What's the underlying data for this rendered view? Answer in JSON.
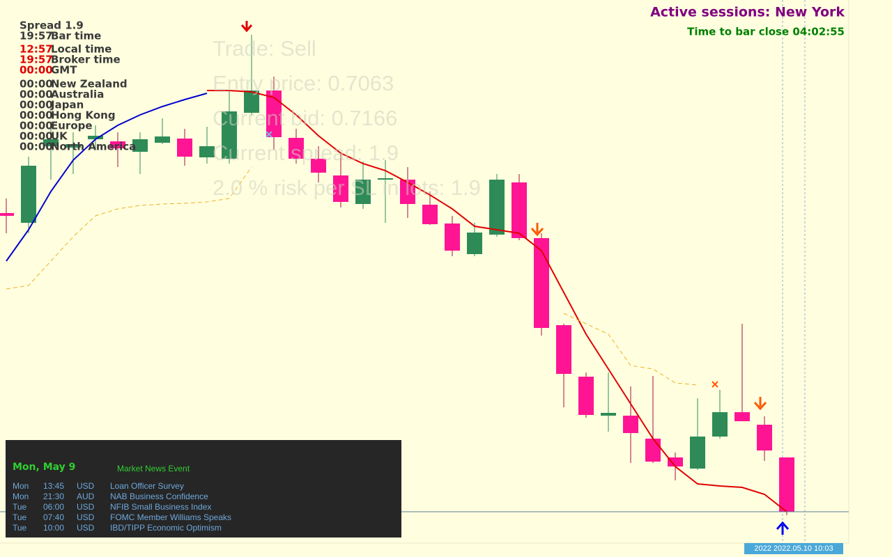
{
  "chart_data": {
    "type": "candlestick",
    "ylim": [
      0.7157,
      0.7313
    ],
    "up_color": "#2e8b57",
    "down_color": "#ff1493",
    "open": [
      0.72518,
      0.7249,
      0.7271,
      0.72706,
      0.7273,
      0.72724,
      0.72694,
      0.7272,
      0.72732,
      0.72678,
      0.72674,
      0.72806,
      0.7287,
      0.72734,
      0.72674,
      0.72626,
      0.72544,
      0.72614,
      0.72614,
      0.72542,
      0.72488,
      0.724,
      0.72456,
      0.72606,
      0.72446,
      0.72196,
      0.72048,
      0.71936,
      0.71936,
      0.7187,
      0.71816,
      0.71784,
      0.71876,
      0.71946,
      0.7191,
      0.71816
    ],
    "high": [
      0.7256,
      0.7268,
      0.7277,
      0.7275,
      0.7277,
      0.7275,
      0.7275,
      0.7279,
      0.7276,
      0.72766,
      0.7287,
      0.7303,
      0.7291,
      0.7276,
      0.7271,
      0.7269,
      0.72666,
      0.7267,
      0.7265,
      0.7258,
      0.7251,
      0.7249,
      0.7263,
      0.7263,
      0.7246,
      0.722,
      0.7206,
      0.7206,
      0.7202,
      0.7205,
      0.7183,
      0.71986,
      0.7201,
      0.722,
      0.71934,
      0.71816
    ],
    "low": [
      0.7246,
      0.7246,
      0.72614,
      0.7263,
      0.727,
      0.7265,
      0.7263,
      0.72716,
      0.72654,
      0.7266,
      0.7266,
      0.728,
      0.727,
      0.7266,
      0.72606,
      0.72534,
      0.7253,
      0.7249,
      0.72504,
      0.72484,
      0.72394,
      0.72394,
      0.7245,
      0.7244,
      0.72166,
      0.7196,
      0.7193,
      0.7189,
      0.718,
      0.718,
      0.7175,
      0.7178,
      0.7187,
      0.7192,
      0.71806,
      0.7165
    ],
    "close": [
      0.7251,
      0.72654,
      0.7273,
      0.72716,
      0.7274,
      0.72704,
      0.7273,
      0.72738,
      0.7268,
      0.7271,
      0.7281,
      0.7287,
      0.72736,
      0.72674,
      0.72634,
      0.7255,
      0.72614,
      0.72618,
      0.72544,
      0.72486,
      0.7241,
      0.72462,
      0.72614,
      0.72446,
      0.72188,
      0.72056,
      0.71938,
      0.71944,
      0.71886,
      0.71804,
      0.7179,
      0.71876,
      0.71946,
      0.7192,
      0.71836,
      0.7166
    ],
    "lines": [
      {
        "color": "#0000cc",
        "values": [
          0.7238,
          0.7247,
          0.7258,
          0.7267,
          0.7273,
          0.7277,
          0.728,
          0.72824,
          0.72844,
          0.72862,
          null,
          null,
          null,
          null,
          null,
          null,
          null,
          null,
          null,
          null,
          null,
          null,
          null,
          null,
          null,
          null,
          null,
          null,
          null,
          null,
          null,
          null,
          null,
          null,
          null,
          null
        ]
      },
      {
        "color": "#e00000",
        "values": [
          null,
          null,
          null,
          null,
          null,
          null,
          null,
          null,
          null,
          0.7287,
          0.7287,
          0.72866,
          0.7285,
          0.728,
          0.7274,
          0.7269,
          0.7266,
          0.7264,
          0.72606,
          0.7257,
          0.7253,
          0.7248,
          0.7247,
          0.7246,
          0.7241,
          0.7229,
          0.7217,
          0.7207,
          0.7197,
          0.7187,
          0.7179,
          0.7174,
          0.71734,
          0.7173,
          0.7171,
          0.7166
        ]
      },
      {
        "color": "#f0b020",
        "dashed": true,
        "values": [
          0.723,
          0.7231,
          0.7238,
          0.7245,
          0.7251,
          0.7253,
          0.7254,
          0.72544,
          0.72546,
          0.7255,
          0.7256,
          0.7265,
          null,
          null,
          null,
          null,
          null,
          null,
          null,
          null,
          null,
          null,
          null,
          null,
          null,
          0.7223,
          0.722,
          0.7217,
          0.7208,
          0.7207,
          0.7203,
          0.72024,
          null,
          null,
          null,
          null
        ]
      }
    ]
  },
  "sessions": {
    "title": "Active sessions: New York",
    "countdown": "Time to bar close 04:02:55"
  },
  "info_panel": {
    "spread": "Spread 1.9",
    "rows": [
      {
        "time": "19:57",
        "label": "Bar time"
      },
      {
        "time": "12:57",
        "label": "Local time"
      },
      {
        "time": "19:57",
        "label": "Broker time"
      },
      {
        "time": "00:00",
        "label": "GMT"
      },
      {
        "time": "00:00",
        "label": "New Zealand"
      },
      {
        "time": "00:00",
        "label": "Australia"
      },
      {
        "time": "00:00",
        "label": "Japan"
      },
      {
        "time": "00:00",
        "label": "Hong Kong"
      },
      {
        "time": "00:00",
        "label": "Europe"
      },
      {
        "time": "00:00",
        "label": "UK"
      },
      {
        "time": "00:00",
        "label": "North America"
      }
    ]
  },
  "trade_info": [
    "Trade: Sell",
    "Entry price: 0.7063",
    "Current bid: 0.7166",
    "Current spread: 1.9",
    "2.0 % risk per SL in lots: 1.9"
  ],
  "news": {
    "date": "Mon, May 9",
    "header": "Market News Event",
    "rows": [
      [
        "Mon",
        "13:45",
        "USD",
        "Loan Officer Survey"
      ],
      [
        "Mon",
        "21:30",
        "AUD",
        "NAB Business Confidence"
      ],
      [
        "Tue",
        "06:00",
        "USD",
        "NFIB Small Business Index"
      ],
      [
        "Tue",
        "07:40",
        "USD",
        "FOMC Member Williams Speaks"
      ],
      [
        "Tue",
        "10:00",
        "USD",
        "IBD/TIPP Economic Optimism"
      ]
    ]
  },
  "time_label": "2022 2022.05.10 10:03"
}
